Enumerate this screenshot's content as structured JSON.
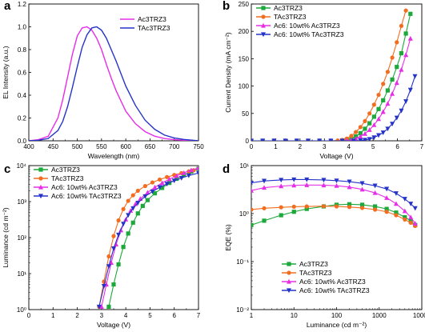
{
  "chart_data": [
    {
      "panel": "a",
      "type": "line",
      "xlabel": "Wavelength (nm)",
      "ylabel": "EL Intensity (a.u.)",
      "xlim": [
        400,
        750
      ],
      "ylim": [
        0,
        1.2
      ],
      "x_ticks": [
        "400",
        "450",
        "500",
        "550",
        "600",
        "650",
        "700",
        "750"
      ],
      "y_ticks": [
        "0.0",
        "0.2",
        "0.4",
        "0.6",
        "0.8",
        "1.0",
        "1.2"
      ],
      "legend_position": "top-right",
      "series": [
        {
          "name": "Ac3TRZ3",
          "color": "#e62ee6",
          "marker": "none",
          "x": [
            400,
            420,
            440,
            460,
            470,
            480,
            490,
            500,
            510,
            520,
            530,
            540,
            550,
            560,
            570,
            580,
            600,
            620,
            640,
            660,
            680,
            700,
            720,
            750
          ],
          "y": [
            0.0,
            0.01,
            0.04,
            0.2,
            0.36,
            0.56,
            0.76,
            0.92,
            0.99,
            1.0,
            0.97,
            0.9,
            0.8,
            0.67,
            0.55,
            0.44,
            0.26,
            0.15,
            0.08,
            0.04,
            0.02,
            0.01,
            0.005,
            0.0
          ]
        },
        {
          "name": "TAc3TRZ3",
          "color": "#2533c8",
          "marker": "none",
          "x": [
            400,
            420,
            440,
            460,
            470,
            480,
            490,
            500,
            510,
            520,
            530,
            540,
            550,
            560,
            570,
            580,
            600,
            620,
            640,
            660,
            680,
            700,
            720,
            750
          ],
          "y": [
            0.0,
            0.005,
            0.02,
            0.09,
            0.17,
            0.3,
            0.47,
            0.65,
            0.82,
            0.93,
            0.99,
            1.0,
            0.97,
            0.9,
            0.8,
            0.7,
            0.48,
            0.31,
            0.18,
            0.1,
            0.05,
            0.025,
            0.012,
            0.0
          ]
        }
      ]
    },
    {
      "panel": "b",
      "type": "line",
      "xlabel": "Voltage (V)",
      "ylabel": "Current Density (mA cm⁻²)",
      "xlim": [
        0,
        7.5
      ],
      "ylim": [
        0,
        250
      ],
      "x_ticks": [
        "0",
        "1",
        "2",
        "3",
        "4",
        "5",
        "6",
        "7"
      ],
      "y_ticks": [
        "0",
        "50",
        "100",
        "150",
        "200",
        "250"
      ],
      "legend_position": "top-left",
      "series": [
        {
          "name": "Ac3TRZ3",
          "color": "#1ca83a",
          "marker": "square",
          "x": [
            0,
            0.5,
            1,
            1.5,
            2,
            2.5,
            3,
            3.5,
            4,
            4.2,
            4.4,
            4.6,
            4.8,
            5.0,
            5.2,
            5.4,
            5.6,
            5.8,
            6.0,
            6.2,
            6.4,
            6.6,
            6.8,
            7.0
          ],
          "y": [
            0,
            0,
            0,
            0,
            0,
            0,
            0,
            0,
            0.5,
            1.5,
            4,
            8,
            14,
            22,
            32,
            44,
            58,
            74,
            92,
            112,
            135,
            160,
            196,
            232
          ]
        },
        {
          "name": "TAc3TRZ3",
          "color": "#f26d1f",
          "marker": "circle",
          "x": [
            0,
            0.5,
            1,
            1.5,
            2,
            2.5,
            3,
            3.5,
            3.8,
            4.0,
            4.2,
            4.4,
            4.6,
            4.8,
            5.0,
            5.2,
            5.4,
            5.6,
            5.8,
            6.0,
            6.2,
            6.4,
            6.6,
            6.8
          ],
          "y": [
            0,
            0,
            0,
            0,
            0,
            0,
            0,
            0,
            0.5,
            1.5,
            4,
            9,
            16,
            25,
            36,
            50,
            66,
            84,
            104,
            126,
            152,
            180,
            210,
            238
          ]
        },
        {
          "name": "Ac6: 10wt% Ac3TRZ3",
          "color": "#e62ee6",
          "marker": "triangle-up",
          "x": [
            0,
            0.5,
            1,
            1.5,
            2,
            2.5,
            3,
            3.5,
            4,
            4.2,
            4.4,
            4.6,
            4.8,
            5.0,
            5.2,
            5.4,
            5.6,
            5.8,
            6.0,
            6.2,
            6.4,
            6.6,
            6.8,
            7.0
          ],
          "y": [
            0,
            0,
            0,
            0,
            0,
            0,
            0,
            0,
            0,
            0.5,
            1.5,
            4,
            8,
            13,
            20,
            29,
            40,
            53,
            68,
            86,
            106,
            130,
            157,
            187
          ]
        },
        {
          "name": "Ac6: 10wt% TAc3TRZ3",
          "color": "#2533c8",
          "marker": "triangle-down",
          "x": [
            0,
            0.5,
            1,
            1.5,
            2,
            2.5,
            3,
            3.5,
            4,
            4.5,
            4.8,
            5.0,
            5.2,
            5.4,
            5.6,
            5.8,
            6.0,
            6.2,
            6.4,
            6.6,
            6.8,
            7.0,
            7.2
          ],
          "y": [
            0,
            0,
            0,
            0,
            0,
            0,
            0,
            0,
            0,
            0,
            0.5,
            1.5,
            3,
            6,
            10,
            15,
            22,
            31,
            42,
            55,
            72,
            93,
            118
          ]
        }
      ]
    },
    {
      "panel": "c",
      "type": "line",
      "xlabel": "Voltage (V)",
      "ylabel": "Luminance (cd m⁻²)",
      "xlim": [
        0,
        7
      ],
      "ylim": [
        1,
        10000
      ],
      "yscale": "log",
      "x_ticks": [
        "0",
        "1",
        "2",
        "3",
        "4",
        "5",
        "6",
        "7"
      ],
      "y_ticks": [
        "10⁰",
        "10¹",
        "10²",
        "10³",
        "10⁴"
      ],
      "legend_position": "top-left",
      "series": [
        {
          "name": "Ac3TRZ3",
          "color": "#1ca83a",
          "marker": "square",
          "x": [
            3.3,
            3.5,
            3.7,
            3.9,
            4.1,
            4.3,
            4.5,
            4.7,
            4.9,
            5.2,
            5.5,
            5.8,
            6.1,
            6.4,
            6.7,
            7.0
          ],
          "y": [
            1.2,
            5,
            18,
            55,
            130,
            260,
            470,
            760,
            1100,
            1700,
            2400,
            3300,
            4300,
            5500,
            6800,
            8200
          ]
        },
        {
          "name": "TAc3TRZ3",
          "color": "#f26d1f",
          "marker": "circle",
          "x": [
            2.9,
            3.1,
            3.3,
            3.5,
            3.7,
            3.9,
            4.1,
            4.3,
            4.5,
            4.8,
            5.1,
            5.4,
            5.7,
            6.0,
            6.3,
            6.6,
            6.8
          ],
          "y": [
            1.2,
            6,
            30,
            110,
            300,
            620,
            1050,
            1500,
            2000,
            2700,
            3400,
            4100,
            4800,
            5500,
            6200,
            6900,
            7400
          ]
        },
        {
          "name": "Ac6: 10wt% Ac3TRZ3",
          "color": "#e62ee6",
          "marker": "triangle-up",
          "x": [
            3.0,
            3.2,
            3.4,
            3.6,
            3.8,
            4.0,
            4.2,
            4.4,
            4.6,
            4.9,
            5.2,
            5.5,
            5.8,
            6.1,
            6.4,
            6.7,
            7.0
          ],
          "y": [
            1.2,
            5,
            20,
            65,
            160,
            320,
            560,
            860,
            1200,
            1800,
            2500,
            3300,
            4200,
            5200,
            6300,
            7500,
            8600
          ]
        },
        {
          "name": "Ac6: 10wt% TAc3TRZ3",
          "color": "#2533c8",
          "marker": "triangle-down",
          "x": [
            2.9,
            3.1,
            3.3,
            3.5,
            3.7,
            3.9,
            4.1,
            4.3,
            4.5,
            4.8,
            5.1,
            5.4,
            5.7,
            6.0,
            6.3,
            6.6,
            7.0
          ],
          "y": [
            1.2,
            4.5,
            16,
            50,
            120,
            240,
            420,
            650,
            920,
            1400,
            1900,
            2500,
            3100,
            3800,
            4500,
            5300,
            6200
          ]
        }
      ]
    },
    {
      "panel": "d",
      "type": "line",
      "xlabel": "Luminance (cd m⁻²)",
      "ylabel": "EQE (%)",
      "xlim": [
        1,
        10000
      ],
      "ylim": [
        0.01,
        30
      ],
      "xscale": "log",
      "yscale": "log",
      "x_ticks": [
        "1",
        "10",
        "100",
        "1000",
        "10000"
      ],
      "y_ticks": [
        "10⁻²",
        "10⁻¹",
        "10⁰",
        "10¹"
      ],
      "legend_position": "bottom-left",
      "series": [
        {
          "name": "Ac3TRZ3",
          "color": "#1ca83a",
          "marker": "square",
          "x": [
            1,
            2,
            5,
            10,
            20,
            50,
            100,
            200,
            400,
            800,
            1500,
            2500,
            4000,
            5500,
            7000
          ],
          "y": [
            1.1,
            1.4,
            1.9,
            2.3,
            2.7,
            3.1,
            3.4,
            3.5,
            3.4,
            3.1,
            2.7,
            2.2,
            1.7,
            1.4,
            1.1
          ]
        },
        {
          "name": "TAc3TRZ3",
          "color": "#f26d1f",
          "marker": "circle",
          "x": [
            1,
            2,
            5,
            10,
            20,
            50,
            100,
            200,
            400,
            800,
            1500,
            2500,
            4000,
            5500,
            7000
          ],
          "y": [
            2.6,
            2.8,
            2.95,
            3.05,
            3.1,
            3.15,
            3.1,
            3.0,
            2.85,
            2.6,
            2.3,
            1.9,
            1.5,
            1.25,
            1.05
          ]
        },
        {
          "name": "Ac6: 10wt% Ac3TRZ3",
          "color": "#e62ee6",
          "marker": "triangle-up",
          "x": [
            1,
            2,
            5,
            10,
            20,
            50,
            100,
            200,
            400,
            800,
            1500,
            2500,
            4000,
            5500,
            7000
          ],
          "y": [
            7.5,
            8.8,
            9.6,
            10.0,
            10.2,
            10.1,
            9.8,
            9.1,
            8.0,
            6.6,
            5.0,
            3.6,
            2.4,
            1.7,
            1.2
          ]
        },
        {
          "name": "Ac6: 10wt% TAc3TRZ3",
          "color": "#2533c8",
          "marker": "triangle-down",
          "x": [
            1,
            2,
            5,
            10,
            20,
            50,
            100,
            200,
            400,
            800,
            1500,
            2500,
            4000,
            5500,
            7000
          ],
          "y": [
            11.5,
            12.8,
            13.5,
            13.8,
            13.8,
            13.5,
            13.0,
            12.3,
            11.2,
            9.8,
            8.2,
            6.4,
            4.7,
            3.6,
            2.8
          ]
        }
      ]
    }
  ]
}
